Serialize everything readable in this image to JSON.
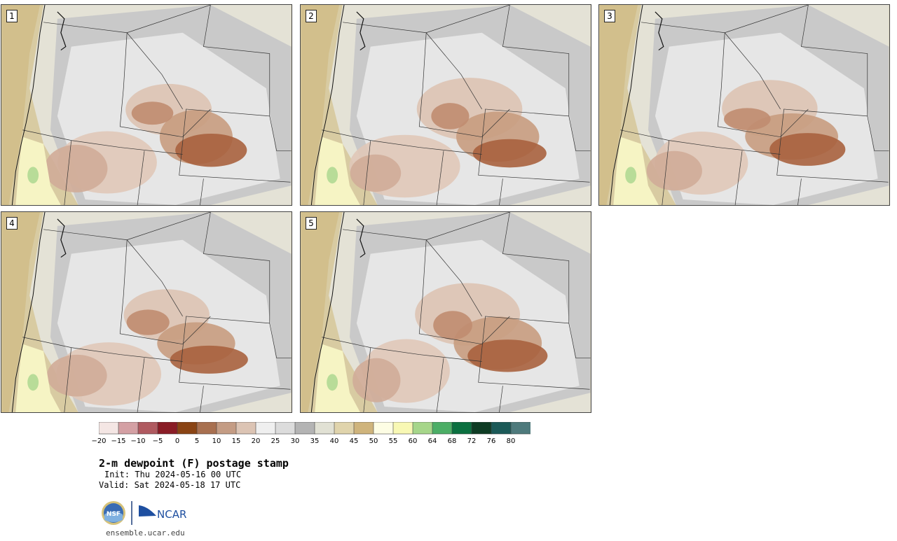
{
  "panels": [
    {
      "label": "1"
    },
    {
      "label": "2"
    },
    {
      "label": "3"
    },
    {
      "label": "4"
    },
    {
      "label": "5"
    }
  ],
  "colorbar": {
    "colors": [
      "#f4e6e4",
      "#d4a0a4",
      "#b05a60",
      "#8a1d26",
      "#8a4414",
      "#a87050",
      "#c49c84",
      "#dcc4b4",
      "#efefef",
      "#dcdcdc",
      "#b4b4b4",
      "#e1e1d4",
      "#e0d4ac",
      "#cfb47c",
      "#fdfde4",
      "#f8f8b4",
      "#a6d68a",
      "#4cae66",
      "#0b7040",
      "#0e3c24",
      "#1b5a58",
      "#4e7a7c"
    ],
    "tick_labels": [
      "−20",
      "−15",
      "−10",
      "−5",
      "0",
      "5",
      "10",
      "15",
      "20",
      "25",
      "30",
      "35",
      "40",
      "45",
      "50",
      "55",
      "60",
      "64",
      "68",
      "72",
      "76",
      "80"
    ]
  },
  "title": "2-m dewpoint (F) postage stamp",
  "init": "Init: Thu 2024-05-16 00 UTC",
  "valid": "Valid: Sat 2024-05-18 17 UTC",
  "logos": {
    "nsf": "NSF",
    "ncar": "NCAR"
  },
  "site": "ensemble.ucar.edu"
}
